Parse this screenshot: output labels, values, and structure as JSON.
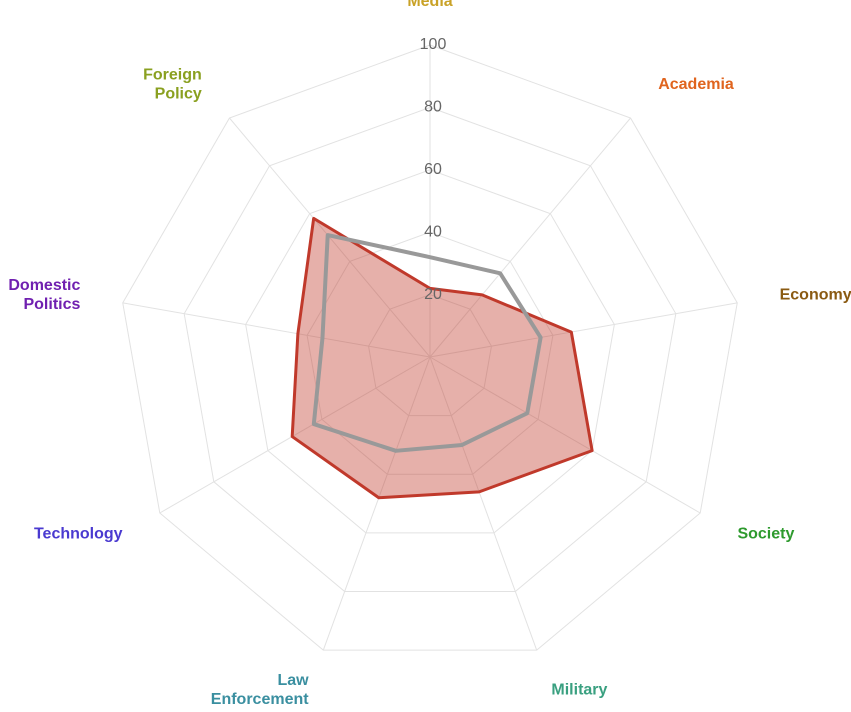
{
  "chart_data": {
    "type": "radar",
    "categories": [
      [
        "Media"
      ],
      [
        "Academia"
      ],
      [
        "Economy"
      ],
      [
        "Society"
      ],
      [
        "Military"
      ],
      [
        "Law",
        "Enforcement"
      ],
      [
        "Technology"
      ],
      [
        "Domestic",
        "Politics"
      ],
      [
        "Foreign",
        "Policy"
      ]
    ],
    "category_colors": [
      "#c9a227",
      "#e0641e",
      "#8a5a12",
      "#2e9a2e",
      "#3aa080",
      "#3a8fa0",
      "#4a3ad0",
      "#7020b0",
      "#8aa020"
    ],
    "rlim": [
      0,
      100
    ],
    "rticks": [
      20,
      40,
      60,
      80,
      100
    ],
    "grid": true,
    "series": [
      {
        "color": "#c0392b",
        "fill": true,
        "values": [
          22,
          26,
          46,
          60,
          46,
          48,
          51,
          43,
          58
        ]
      },
      {
        "color": "#999999",
        "fill": false,
        "values": [
          32,
          35,
          36,
          36,
          30,
          32,
          43,
          35,
          51
        ]
      }
    ]
  }
}
